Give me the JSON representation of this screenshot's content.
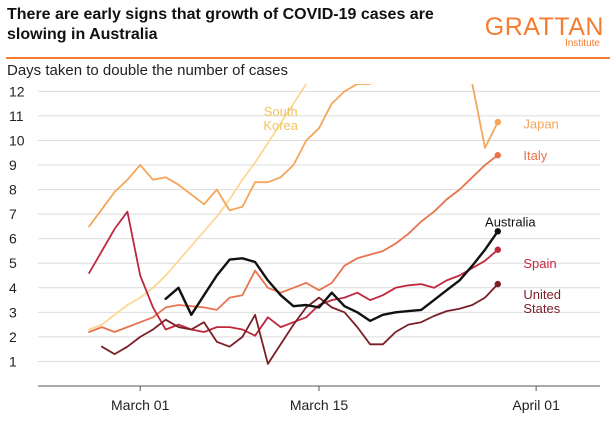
{
  "header": {
    "title": "There are early signs that growth of COVID-19 cases are slowing in Australia",
    "logo_word": "GRATTAN",
    "logo_sub": "Institute",
    "accent_color": "#f47d30"
  },
  "chart_data": {
    "type": "line",
    "subtitle": "Days taken to double the number of cases",
    "xlabel": "",
    "ylabel": "",
    "x_ticks": [
      {
        "date": "2020-03-01",
        "label": "March 01"
      },
      {
        "date": "2020-03-15",
        "label": "March 15"
      },
      {
        "date": "2020-04-01",
        "label": "April 01"
      }
    ],
    "xlim": [
      "2020-02-22",
      "2020-04-06"
    ],
    "ylim": [
      0,
      12.3
    ],
    "y_ticks": [
      1,
      2,
      3,
      4,
      5,
      6,
      7,
      8,
      9,
      10,
      11,
      12
    ],
    "grid": "horizontal",
    "series": [
      {
        "name": "South Korea",
        "color": "#fdd794",
        "label_lines": [
          "South",
          "Korea"
        ],
        "label_at": [
          "2020-03-12",
          11.2
        ],
        "end_dot": false,
        "x": [
          "2020-02-26",
          "2020-02-27",
          "2020-02-28",
          "2020-02-29",
          "2020-03-01",
          "2020-03-02",
          "2020-03-03",
          "2020-03-04",
          "2020-03-05",
          "2020-03-06",
          "2020-03-07",
          "2020-03-08",
          "2020-03-09",
          "2020-03-10",
          "2020-03-11",
          "2020-03-12",
          "2020-03-13",
          "2020-03-14"
        ],
        "y": [
          2.3,
          2.5,
          2.9,
          3.3,
          3.6,
          4.0,
          4.5,
          5.1,
          5.7,
          6.3,
          6.9,
          7.6,
          8.4,
          9.1,
          9.9,
          10.7,
          11.5,
          12.3
        ]
      },
      {
        "name": "Japan",
        "color": "#f4a65a",
        "label_lines": [
          "Japan"
        ],
        "label_at": [
          "2020-03-31",
          10.7
        ],
        "end_dot": true,
        "x": [
          "2020-02-26",
          "2020-02-27",
          "2020-02-28",
          "2020-02-29",
          "2020-03-01",
          "2020-03-02",
          "2020-03-03",
          "2020-03-04",
          "2020-03-05",
          "2020-03-06",
          "2020-03-07",
          "2020-03-08",
          "2020-03-09",
          "2020-03-10",
          "2020-03-11",
          "2020-03-12",
          "2020-03-13",
          "2020-03-14",
          "2020-03-15",
          "2020-03-16",
          "2020-03-17",
          "2020-03-18",
          "2020-03-19",
          null,
          "2020-03-27",
          "2020-03-28",
          "2020-03-29"
        ],
        "y": [
          6.5,
          7.2,
          7.9,
          8.4,
          9.0,
          8.4,
          8.5,
          8.2,
          7.8,
          7.4,
          8.0,
          7.15,
          7.3,
          8.3,
          8.3,
          8.5,
          9.0,
          10.0,
          10.5,
          11.5,
          12.0,
          12.3,
          12.3,
          null,
          12.3,
          9.7,
          10.75
        ]
      },
      {
        "name": "Italy",
        "color": "#e8734f",
        "label_lines": [
          "Italy"
        ],
        "label_at": [
          "2020-03-31",
          9.4
        ],
        "end_dot": true,
        "x": [
          "2020-02-26",
          "2020-02-27",
          "2020-02-28",
          "2020-02-29",
          "2020-03-01",
          "2020-03-02",
          "2020-03-03",
          "2020-03-04",
          "2020-03-05",
          "2020-03-06",
          "2020-03-07",
          "2020-03-08",
          "2020-03-09",
          "2020-03-10",
          "2020-03-11",
          "2020-03-12",
          "2020-03-13",
          "2020-03-14",
          "2020-03-15",
          "2020-03-16",
          "2020-03-17",
          "2020-03-18",
          "2020-03-19",
          "2020-03-20",
          "2020-03-21",
          "2020-03-22",
          "2020-03-23",
          "2020-03-24",
          "2020-03-25",
          "2020-03-26",
          "2020-03-27",
          "2020-03-28",
          "2020-03-29"
        ],
        "y": [
          2.2,
          2.4,
          2.2,
          2.4,
          2.6,
          2.8,
          3.2,
          3.3,
          3.25,
          3.2,
          3.1,
          3.6,
          3.7,
          4.7,
          4.0,
          3.8,
          4.0,
          4.2,
          3.9,
          4.2,
          4.9,
          5.2,
          5.35,
          5.5,
          5.8,
          6.2,
          6.7,
          7.1,
          7.6,
          8.0,
          8.5,
          9.0,
          9.4
        ]
      },
      {
        "name": "Spain",
        "color": "#c0283e",
        "label_lines": [
          "Spain"
        ],
        "label_at": [
          "2020-03-31",
          5.0
        ],
        "end_dot": true,
        "x": [
          "2020-02-26",
          "2020-02-27",
          "2020-02-28",
          "2020-02-29",
          "2020-03-01",
          "2020-03-02",
          "2020-03-03",
          "2020-03-04",
          "2020-03-05",
          "2020-03-06",
          "2020-03-07",
          "2020-03-08",
          "2020-03-09",
          "2020-03-10",
          "2020-03-11",
          "2020-03-12",
          "2020-03-13",
          "2020-03-14",
          "2020-03-15",
          "2020-03-16",
          "2020-03-17",
          "2020-03-18",
          "2020-03-19",
          "2020-03-20",
          "2020-03-21",
          "2020-03-22",
          "2020-03-23",
          "2020-03-24",
          "2020-03-25",
          "2020-03-26",
          "2020-03-27",
          "2020-03-28",
          "2020-03-29"
        ],
        "y": [
          4.6,
          5.5,
          6.4,
          7.1,
          4.5,
          3.2,
          2.3,
          2.5,
          2.3,
          2.2,
          2.4,
          2.4,
          2.3,
          2.05,
          2.8,
          2.4,
          2.6,
          2.8,
          3.3,
          3.5,
          3.6,
          3.8,
          3.5,
          3.7,
          4.0,
          4.1,
          4.15,
          4.0,
          4.3,
          4.5,
          4.8,
          5.1,
          5.55
        ]
      },
      {
        "name": "United States",
        "color": "#7a1f28",
        "label_lines": [
          "United",
          "States"
        ],
        "label_at": [
          "2020-03-31",
          3.75
        ],
        "end_dot": true,
        "x": [
          "2020-02-27",
          "2020-02-28",
          "2020-02-29",
          "2020-03-01",
          "2020-03-02",
          "2020-03-03",
          "2020-03-04",
          "2020-03-05",
          "2020-03-06",
          "2020-03-07",
          "2020-03-08",
          "2020-03-09",
          "2020-03-10",
          "2020-03-11",
          "2020-03-12",
          "2020-03-13",
          "2020-03-14",
          "2020-03-15",
          "2020-03-16",
          "2020-03-17",
          "2020-03-18",
          "2020-03-19",
          "2020-03-20",
          "2020-03-21",
          "2020-03-22",
          "2020-03-23",
          "2020-03-24",
          "2020-03-25",
          "2020-03-26",
          "2020-03-27",
          "2020-03-28",
          "2020-03-29"
        ],
        "y": [
          1.6,
          1.3,
          1.6,
          2.0,
          2.3,
          2.7,
          2.4,
          2.3,
          2.6,
          1.8,
          1.6,
          2.0,
          2.9,
          0.9,
          1.7,
          2.5,
          3.2,
          3.6,
          3.2,
          3.0,
          2.4,
          1.7,
          1.7,
          2.2,
          2.5,
          2.6,
          2.85,
          3.05,
          3.15,
          3.3,
          3.6,
          4.15
        ]
      },
      {
        "name": "Australia",
        "color": "#111111",
        "label_lines": [
          "Australia"
        ],
        "label_at": [
          "2020-03-28",
          6.7
        ],
        "end_dot": true,
        "x": [
          "2020-03-03",
          "2020-03-04",
          "2020-03-05",
          "2020-03-06",
          "2020-03-07",
          "2020-03-08",
          "2020-03-09",
          "2020-03-10",
          "2020-03-11",
          "2020-03-12",
          "2020-03-13",
          "2020-03-14",
          "2020-03-15",
          "2020-03-16",
          "2020-03-17",
          "2020-03-18",
          "2020-03-19",
          "2020-03-20",
          "2020-03-21",
          "2020-03-22",
          "2020-03-23",
          "2020-03-24",
          "2020-03-25",
          "2020-03-26",
          "2020-03-27",
          "2020-03-28",
          "2020-03-29"
        ],
        "y": [
          3.55,
          4.0,
          2.9,
          3.7,
          4.5,
          5.15,
          5.2,
          5.05,
          4.3,
          3.7,
          3.25,
          3.3,
          3.2,
          3.8,
          3.25,
          3.0,
          2.65,
          2.9,
          3.0,
          3.05,
          3.1,
          3.5,
          3.9,
          4.3,
          4.9,
          5.55,
          6.3
        ]
      }
    ]
  }
}
